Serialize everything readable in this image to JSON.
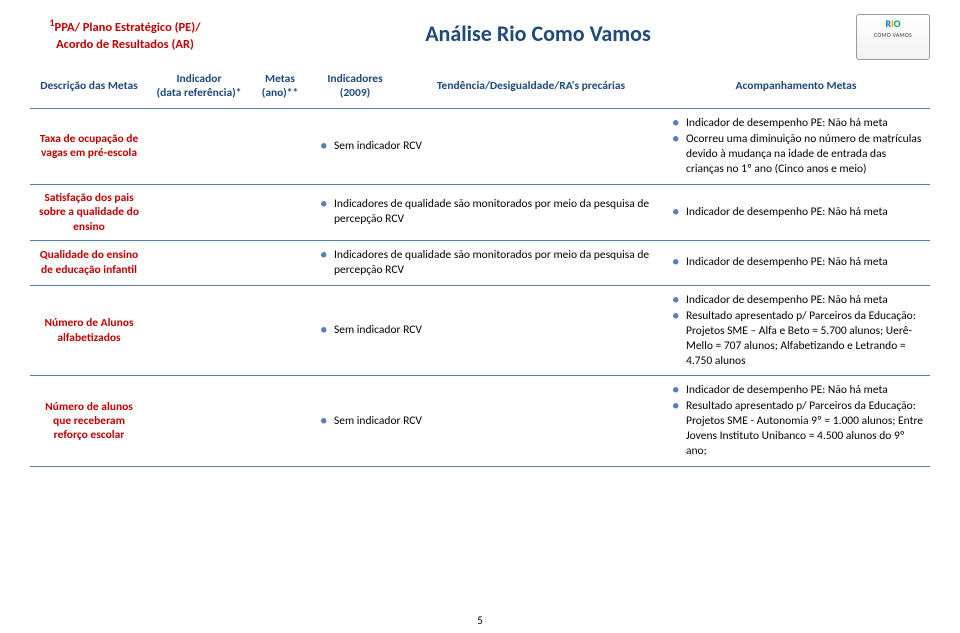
{
  "header": {
    "top_left_line1_prefix": "1",
    "top_left_line1": "PPA/ Plano Estratégico (PE)/",
    "top_left_line2": "Acordo de Resultados (AR)",
    "title": "Análise Rio Como Vamos",
    "logo_main": "RIO",
    "logo_sub": "COMO VAMOS"
  },
  "columns": {
    "c1": "Descrição das Metas",
    "c2a": "Indicador",
    "c2b": "(data referência)*",
    "c3a": "Metas",
    "c3b": "(ano)**",
    "c4a": "Indicadores",
    "c4b": "(2009)",
    "c5": "Tendência/Desigualdade/RA's precárias",
    "c6": "Acompanhamento Metas"
  },
  "rows": [
    {
      "desc": "Taxa de ocupação de vagas em pré-escola",
      "indicators": [
        "Sem indicador RCV"
      ],
      "accomp": [
        "Indicador de desempenho PE: Não há meta",
        "Ocorreu uma diminuição no número de matrículas devido à mudança na idade de entrada das crianças no 1º ano (Cinco anos e meio)"
      ]
    },
    {
      "desc": "Satisfação dos pais sobre a qualidade do ensino",
      "indicators": [
        "Indicadores de qualidade são monitorados por meio da pesquisa de percepção RCV"
      ],
      "accomp": [
        "Indicador de desempenho PE: Não há meta"
      ]
    },
    {
      "desc": "Qualidade do ensino de educação infantil",
      "indicators": [
        "Indicadores de qualidade são monitorados por meio da pesquisa de percepção RCV"
      ],
      "accomp": [
        "Indicador de desempenho PE: Não há meta"
      ]
    },
    {
      "desc": "Número de Alunos alfabetizados",
      "indicators": [
        "Sem indicador RCV"
      ],
      "accomp": [
        "Indicador de desempenho PE: Não há meta",
        "Resultado apresentado p/ Parceiros da Educação: Projetos SME – Alfa e Beto = 5.700 alunos; Uerê-Mello = 707 alunos; Alfabetizando e Letrando = 4.750 alunos"
      ]
    },
    {
      "desc": "Número de alunos que receberam reforço escolar",
      "indicators": [
        "Sem indicador RCV"
      ],
      "accomp": [
        "Indicador de desempenho PE: Não há meta",
        "Resultado apresentado p/ Parceiros da Educação: Projetos SME - Autonomia 9º = 1.000 alunos; Entre Jovens Instituto Unibanco = 4.500 alunos do 9º ano;"
      ]
    }
  ],
  "page_number": "5"
}
